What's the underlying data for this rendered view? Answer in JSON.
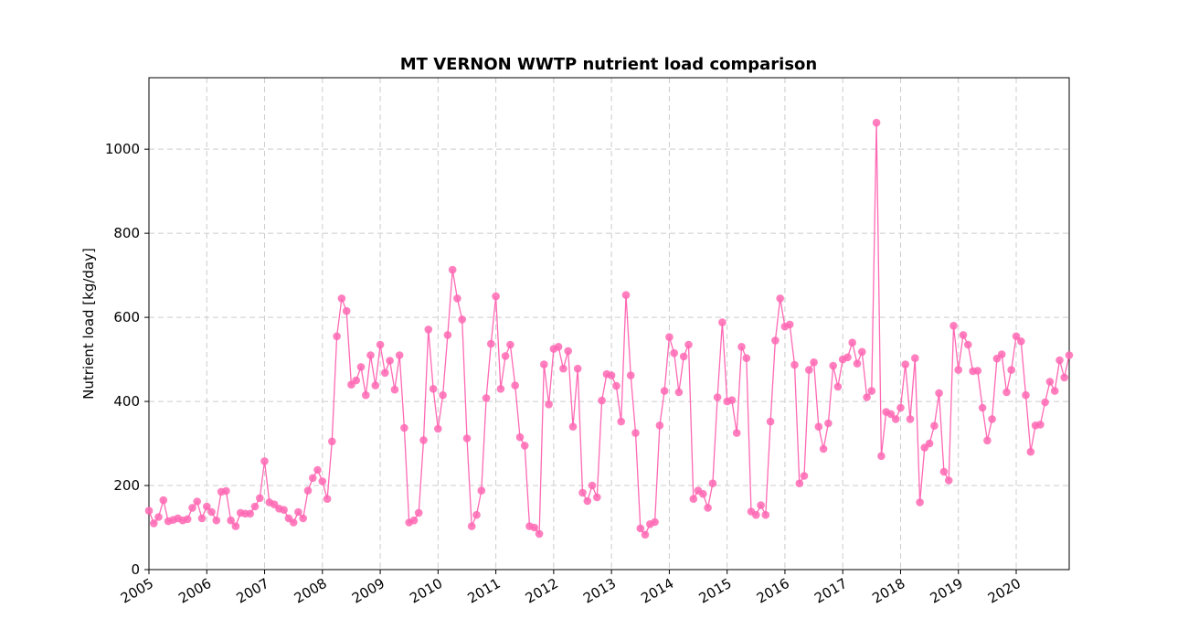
{
  "chart_data": {
    "type": "line",
    "title": "MT VERNON WWTP nutrient load comparison",
    "xlabel": "",
    "ylabel": "Nutrient load [kg/day]",
    "ylim": [
      0,
      1170
    ],
    "yticks": [
      0,
      200,
      400,
      600,
      800,
      1000
    ],
    "xlim": [
      "2005-01",
      "2020-12"
    ],
    "xticks": [
      "2005",
      "2006",
      "2007",
      "2008",
      "2009",
      "2010",
      "2011",
      "2012",
      "2013",
      "2014",
      "2015",
      "2016",
      "2017",
      "2018",
      "2019",
      "2020"
    ],
    "grid": true,
    "colors": {
      "series": "#ff69b4"
    },
    "series": [
      {
        "x_start": "2005-01",
        "x_step": "month",
        "values": [
          140,
          110,
          125,
          165,
          115,
          118,
          122,
          117,
          120,
          147,
          162,
          122,
          150,
          137,
          117,
          185,
          187,
          117,
          103,
          135,
          133,
          133,
          150,
          170,
          258,
          160,
          155,
          145,
          142,
          122,
          112,
          137,
          122,
          188,
          218,
          237,
          210,
          168,
          305,
          555,
          645,
          615,
          440,
          450,
          482,
          415,
          510,
          438,
          535,
          468,
          497,
          428,
          510,
          337,
          112,
          117,
          135,
          308,
          571,
          430,
          335,
          415,
          558,
          713,
          645,
          595,
          312,
          103,
          130,
          188,
          408,
          537,
          650,
          430,
          508,
          535,
          438,
          315,
          295,
          103,
          100,
          85,
          488,
          393,
          525,
          530,
          478,
          520,
          340,
          478,
          183,
          163,
          200,
          172,
          402,
          465,
          462,
          437,
          352,
          653,
          462,
          325,
          98,
          83,
          108,
          113,
          343,
          425,
          553,
          515,
          422,
          507,
          535,
          168,
          188,
          180,
          147,
          205,
          410,
          588,
          400,
          403,
          325,
          530,
          503,
          138,
          130,
          153,
          130,
          352,
          545,
          645,
          578,
          583,
          487,
          205,
          223,
          475,
          493,
          340,
          287,
          348,
          485,
          435,
          500,
          505,
          540,
          490,
          518,
          410,
          425,
          1063,
          270,
          375,
          370,
          358,
          385,
          488,
          358,
          503,
          160,
          290,
          300,
          342,
          420,
          233,
          212,
          580,
          475,
          558,
          535,
          472,
          473,
          385,
          307,
          358,
          502,
          512,
          422,
          475,
          555,
          543,
          415,
          280,
          343,
          345,
          398,
          447,
          425,
          498,
          457,
          510
        ]
      }
    ]
  }
}
